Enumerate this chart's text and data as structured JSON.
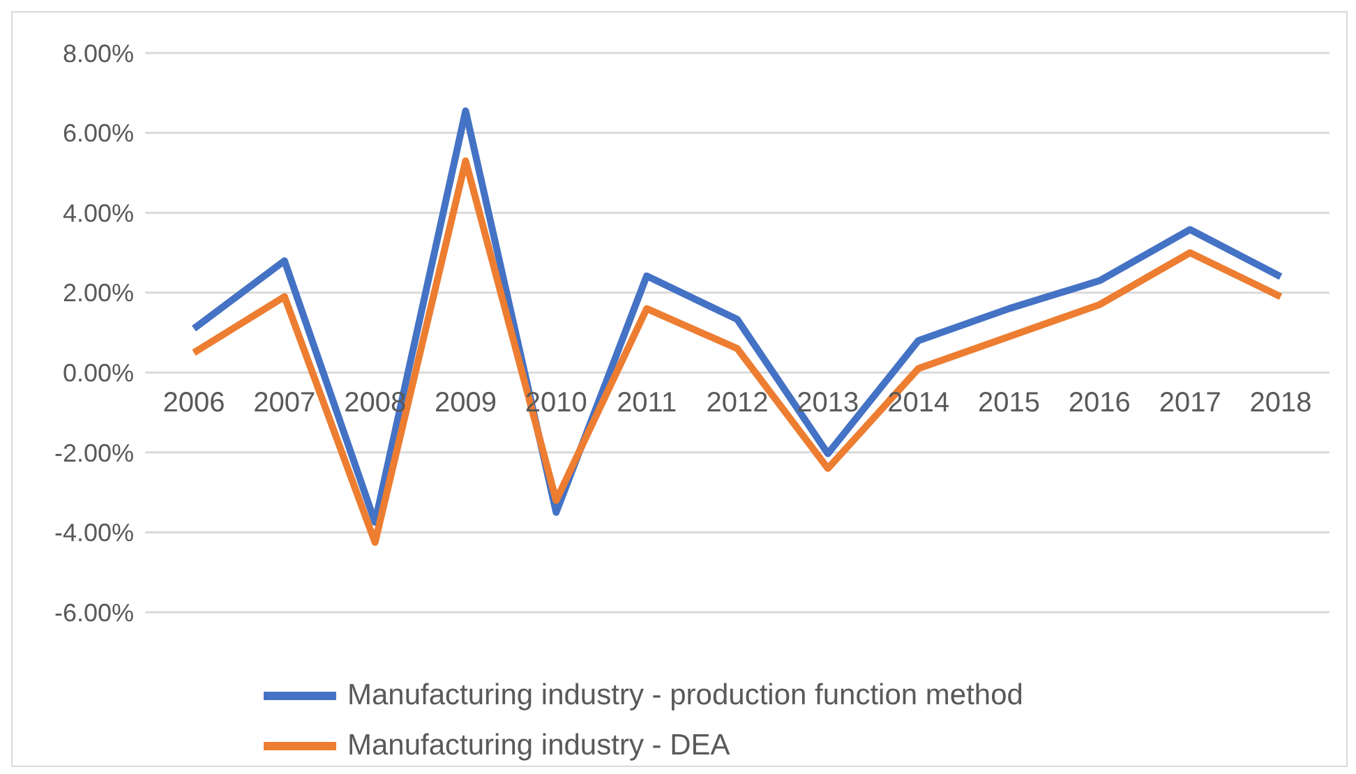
{
  "chart_data": {
    "type": "line",
    "categories": [
      "2006",
      "2007",
      "2008",
      "2009",
      "2010",
      "2011",
      "2012",
      "2013",
      "2014",
      "2015",
      "2016",
      "2017",
      "2018"
    ],
    "series": [
      {
        "name": "Manufacturing industry - production function method",
        "color": "#4472c4",
        "values": [
          1.1,
          2.8,
          -3.75,
          6.55,
          -3.5,
          2.42,
          1.33,
          -2.03,
          0.8,
          1.6,
          2.3,
          3.58,
          2.4
        ]
      },
      {
        "name": "Manufacturing industry - DEA",
        "color": "#ed7d31",
        "values": [
          0.5,
          1.9,
          -4.25,
          5.3,
          -3.2,
          1.6,
          0.6,
          -2.4,
          0.1,
          0.9,
          1.7,
          3.0,
          1.9
        ]
      }
    ],
    "ylim": [
      -6,
      8
    ],
    "yticks": [
      {
        "value": -6,
        "label": "-6.00%"
      },
      {
        "value": -4,
        "label": "-4.00%"
      },
      {
        "value": -2,
        "label": "-2.00%"
      },
      {
        "value": 0,
        "label": "0.00%"
      },
      {
        "value": 2,
        "label": "2.00%"
      },
      {
        "value": 4,
        "label": "4.00%"
      },
      {
        "value": 6,
        "label": "6.00%"
      },
      {
        "value": 8,
        "label": "8.00%"
      }
    ],
    "grid": "y",
    "legend": "bottom",
    "marker": "none",
    "line_style": "solid"
  }
}
